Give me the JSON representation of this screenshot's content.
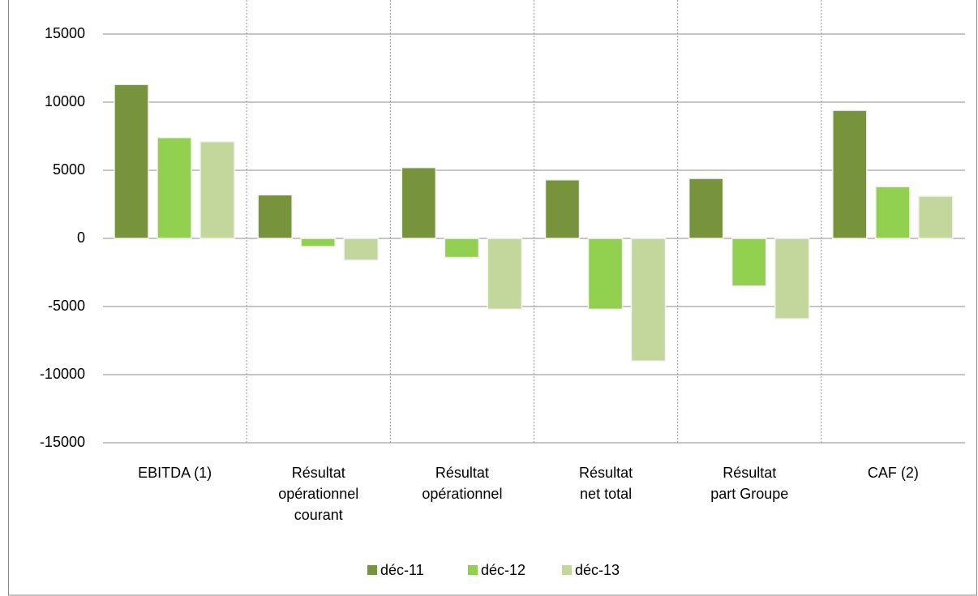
{
  "chart_data": {
    "type": "bar",
    "categories": [
      "EBITDA (1)",
      "Résultat\nopérationnel\ncourant",
      "Résultat\nopérationnel",
      "Résultat\nnet total",
      "Résultat\npart Groupe",
      "CAF (2)"
    ],
    "series": [
      {
        "name": "déc-11",
        "color": "#77933c",
        "values": [
          11300,
          3200,
          5200,
          4300,
          4400,
          9400
        ]
      },
      {
        "name": "déc-12",
        "color": "#92d050",
        "values": [
          7400,
          -600,
          -1400,
          -5200,
          -3500,
          3800
        ]
      },
      {
        "name": "déc-13",
        "color": "#c3d69b",
        "values": [
          7100,
          -1600,
          -5200,
          -9000,
          -5900,
          3100
        ]
      }
    ],
    "ylim": [
      -15000,
      15000
    ],
    "yticks": [
      -15000,
      -10000,
      -5000,
      0,
      5000,
      10000,
      15000
    ],
    "grid": true,
    "legend": "bottom"
  }
}
